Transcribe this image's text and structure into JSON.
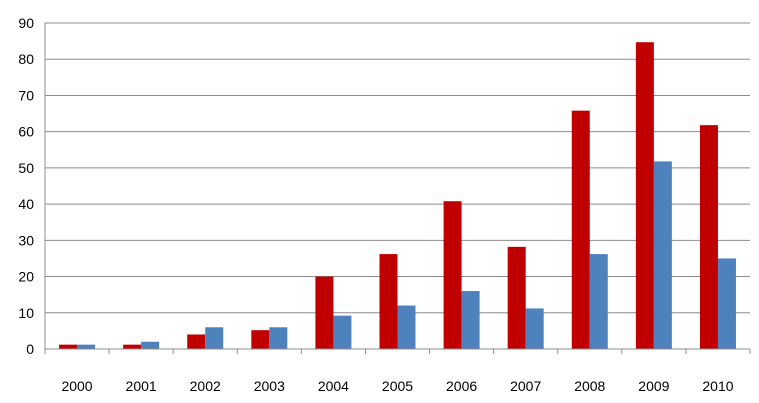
{
  "chart_data": {
    "type": "bar",
    "categories": [
      "2000",
      "2001",
      "2002",
      "2003",
      "2004",
      "2005",
      "2006",
      "2007",
      "2008",
      "2009",
      "2010"
    ],
    "series": [
      {
        "color": "#C00000",
        "values": [
          1.2,
          1.2,
          4,
          5.2,
          20,
          26.2,
          40.8,
          28.2,
          65.8,
          84.7,
          61.8
        ]
      },
      {
        "color": "#4F81BD",
        "values": [
          1.2,
          2,
          6,
          6,
          9.2,
          12,
          16,
          11.2,
          26.2,
          51.8,
          25
        ]
      }
    ],
    "ylim": [
      0,
      90
    ],
    "yticks": [
      "0",
      "10",
      "20",
      "30",
      "40",
      "50",
      "60",
      "70",
      "80",
      "90"
    ],
    "grid": true,
    "legend": "none",
    "title": "",
    "xlabel": "",
    "ylabel": ""
  }
}
